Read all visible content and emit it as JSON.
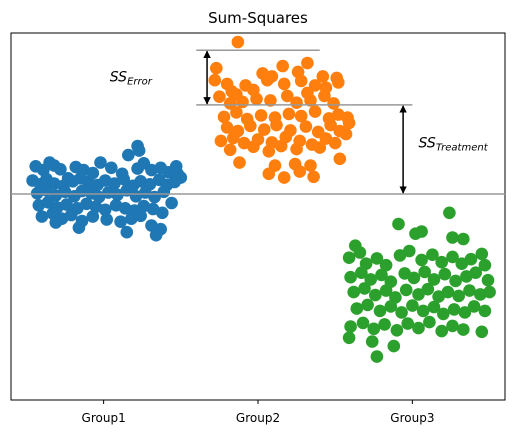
{
  "chart_data": {
    "type": "scatter",
    "title": "Sum-Squares",
    "xlabel": "",
    "ylabel": "",
    "categories": [
      "Group1",
      "Group2",
      "Group3"
    ],
    "xlim": [
      0.4,
      3.6
    ],
    "ylim": [
      -2.75,
      2.15
    ],
    "grid": false,
    "legend": "none",
    "grand_mean": 0,
    "series": [
      {
        "color": "#1f77b4",
        "points": [
          [
            0.56,
            0.37
          ],
          [
            0.61,
            0.32
          ],
          [
            0.65,
            0.42
          ],
          [
            0.68,
            0.38
          ],
          [
            0.72,
            0.33
          ],
          [
            0.77,
            0.21
          ],
          [
            0.82,
            0.36
          ],
          [
            0.87,
            0.32
          ],
          [
            0.93,
            0.28
          ],
          [
            0.98,
            0.42
          ],
          [
            1.05,
            0.35
          ],
          [
            1.12,
            0.27
          ],
          [
            1.16,
            0.52
          ],
          [
            1.22,
            0.34
          ],
          [
            1.26,
            0.41
          ],
          [
            1.31,
            0.32
          ],
          [
            1.37,
            0.35
          ],
          [
            1.42,
            0.29
          ],
          [
            1.47,
            0.37
          ],
          [
            1.5,
            0.22
          ],
          [
            0.54,
            0.18
          ],
          [
            0.59,
            0.13
          ],
          [
            0.63,
            0.2
          ],
          [
            0.68,
            0.14
          ],
          [
            0.74,
            0.11
          ],
          [
            0.8,
            0.17
          ],
          [
            0.85,
            0.21
          ],
          [
            0.9,
            0.16
          ],
          [
            0.96,
            0.12
          ],
          [
            1.01,
            0.18
          ],
          [
            1.07,
            0.14
          ],
          [
            1.13,
            0.2
          ],
          [
            1.19,
            0.11
          ],
          [
            1.24,
            0.17
          ],
          [
            1.3,
            0.13
          ],
          [
            1.36,
            0.19
          ],
          [
            1.41,
            0.12
          ],
          [
            1.46,
            0.16
          ],
          [
            1.48,
            0.27
          ],
          [
            0.57,
            0.01
          ],
          [
            0.63,
            0.05
          ],
          [
            0.69,
            -0.02
          ],
          [
            0.75,
            0.03
          ],
          [
            0.81,
            -0.03
          ],
          [
            0.86,
            0.04
          ],
          [
            0.92,
            0.01
          ],
          [
            0.97,
            -0.04
          ],
          [
            1.03,
            0.02
          ],
          [
            1.09,
            -0.01
          ],
          [
            1.15,
            0.05
          ],
          [
            1.21,
            -0.03
          ],
          [
            1.27,
            0.02
          ],
          [
            1.33,
            -0.04
          ],
          [
            1.39,
            0.03
          ],
          [
            1.44,
            -0.12
          ],
          [
            0.58,
            -0.15
          ],
          [
            0.64,
            -0.11
          ],
          [
            0.7,
            -0.18
          ],
          [
            0.76,
            -0.14
          ],
          [
            0.83,
            -0.19
          ],
          [
            0.89,
            -0.13
          ],
          [
            0.95,
            -0.17
          ],
          [
            1.01,
            -0.21
          ],
          [
            1.08,
            -0.15
          ],
          [
            1.14,
            -0.19
          ],
          [
            1.2,
            -0.22
          ],
          [
            1.26,
            -0.16
          ],
          [
            1.32,
            -0.2
          ],
          [
            1.38,
            -0.25
          ],
          [
            0.6,
            -0.3
          ],
          [
            0.67,
            -0.26
          ],
          [
            0.73,
            -0.33
          ],
          [
            0.79,
            -0.28
          ],
          [
            0.86,
            -0.36
          ],
          [
            0.93,
            -0.3
          ],
          [
            1.02,
            -0.34
          ],
          [
            1.11,
            -0.37
          ],
          [
            1.18,
            -0.33
          ],
          [
            1.24,
            -0.29
          ],
          [
            1.31,
            -0.42
          ],
          [
            1.37,
            -0.47
          ],
          [
            1.34,
            -0.55
          ],
          [
            0.84,
            -0.45
          ],
          [
            0.69,
            -0.38
          ],
          [
            1.15,
            -0.51
          ],
          [
            1.22,
            0.64
          ],
          [
            1.23,
            0.58
          ]
        ]
      },
      {
        "color": "#ff7f0e",
        "points": [
          [
            1.87,
            2.03
          ],
          [
            1.73,
            1.68
          ],
          [
            1.72,
            1.52
          ],
          [
            1.8,
            1.47
          ],
          [
            1.83,
            1.37
          ],
          [
            2.03,
            1.61
          ],
          [
            2.09,
            1.57
          ],
          [
            2.16,
            1.71
          ],
          [
            2.26,
            1.63
          ],
          [
            2.32,
            1.75
          ],
          [
            2.42,
            1.57
          ],
          [
            2.51,
            1.55
          ],
          [
            2.37,
            1.45
          ],
          [
            2.44,
            1.42
          ],
          [
            2.52,
            1.49
          ],
          [
            2.32,
            1.35
          ],
          [
            2.06,
            1.52
          ],
          [
            1.92,
            1.45
          ],
          [
            1.86,
            1.33
          ],
          [
            1.97,
            1.39
          ],
          [
            2.17,
            1.47
          ],
          [
            2.28,
            1.51
          ],
          [
            1.75,
            1.3
          ],
          [
            1.82,
            1.21
          ],
          [
            1.9,
            1.23
          ],
          [
            1.99,
            1.27
          ],
          [
            2.08,
            1.25
          ],
          [
            2.19,
            1.31
          ],
          [
            2.25,
            1.22
          ],
          [
            2.34,
            1.25
          ],
          [
            2.43,
            1.31
          ],
          [
            2.49,
            1.21
          ],
          [
            1.78,
            1.03
          ],
          [
            1.86,
            1.09
          ],
          [
            1.93,
            1.0
          ],
          [
            2.02,
            1.05
          ],
          [
            2.11,
            1.02
          ],
          [
            2.2,
            1.07
          ],
          [
            2.28,
            1.04
          ],
          [
            2.37,
            1.1
          ],
          [
            2.46,
            1.01
          ],
          [
            2.52,
            1.06
          ],
          [
            1.8,
            0.89
          ],
          [
            1.87,
            0.84
          ],
          [
            1.95,
            0.91
          ],
          [
            2.04,
            0.86
          ],
          [
            2.12,
            0.92
          ],
          [
            2.21,
            0.85
          ],
          [
            2.31,
            0.9
          ],
          [
            2.39,
            0.83
          ],
          [
            2.47,
            0.92
          ],
          [
            2.53,
            0.84
          ],
          [
            1.76,
            0.71
          ],
          [
            1.84,
            0.75
          ],
          [
            1.91,
            0.68
          ],
          [
            2.0,
            0.73
          ],
          [
            2.09,
            0.69
          ],
          [
            2.18,
            0.76
          ],
          [
            2.27,
            0.71
          ],
          [
            2.35,
            0.66
          ],
          [
            2.44,
            0.74
          ],
          [
            2.5,
            0.68
          ],
          [
            1.82,
            0.59
          ],
          [
            1.97,
            0.63
          ],
          [
            2.07,
            0.57
          ],
          [
            2.15,
            0.64
          ],
          [
            2.25,
            0.6
          ],
          [
            2.4,
            0.62
          ],
          [
            2.24,
            0.4
          ],
          [
            2.27,
            0.3
          ],
          [
            2.36,
            0.23
          ],
          [
            2.17,
            0.22
          ],
          [
            2.07,
            0.27
          ],
          [
            1.88,
            0.42
          ],
          [
            2.53,
            0.47
          ],
          [
            2.34,
            0.38
          ],
          [
            2.11,
            0.38
          ],
          [
            2.58,
            1.02
          ],
          [
            2.59,
            0.95
          ],
          [
            2.57,
            0.8
          ]
        ]
      },
      {
        "color": "#2ca02c",
        "points": [
          [
            3.24,
            -0.25
          ],
          [
            2.91,
            -0.4
          ],
          [
            3.02,
            -0.53
          ],
          [
            3.06,
            -0.5
          ],
          [
            3.33,
            -0.6
          ],
          [
            3.26,
            -0.58
          ],
          [
            2.63,
            -0.69
          ],
          [
            2.59,
            -0.85
          ],
          [
            2.66,
            -0.78
          ],
          [
            2.7,
            -0.93
          ],
          [
            2.77,
            -0.86
          ],
          [
            2.83,
            -0.95
          ],
          [
            2.92,
            -0.82
          ],
          [
            2.98,
            -0.76
          ],
          [
            3.06,
            -0.88
          ],
          [
            3.13,
            -0.81
          ],
          [
            3.19,
            -0.91
          ],
          [
            3.26,
            -0.84
          ],
          [
            3.32,
            -0.93
          ],
          [
            3.38,
            -0.87
          ],
          [
            3.45,
            -0.8
          ],
          [
            3.47,
            -0.95
          ],
          [
            2.6,
            -1.11
          ],
          [
            2.67,
            -1.05
          ],
          [
            2.73,
            -1.14
          ],
          [
            2.8,
            -1.08
          ],
          [
            2.86,
            -1.17
          ],
          [
            2.95,
            -1.06
          ],
          [
            3.01,
            -1.12
          ],
          [
            3.08,
            -1.04
          ],
          [
            3.14,
            -1.14
          ],
          [
            3.21,
            -1.07
          ],
          [
            3.28,
            -1.16
          ],
          [
            3.35,
            -1.1
          ],
          [
            3.41,
            -1.05
          ],
          [
            3.49,
            -1.15
          ],
          [
            2.62,
            -1.31
          ],
          [
            2.69,
            -1.26
          ],
          [
            2.76,
            -1.35
          ],
          [
            2.83,
            -1.29
          ],
          [
            2.89,
            -1.38
          ],
          [
            2.96,
            -1.28
          ],
          [
            3.04,
            -1.34
          ],
          [
            3.1,
            -1.27
          ],
          [
            3.17,
            -1.37
          ],
          [
            3.23,
            -1.31
          ],
          [
            3.3,
            -1.36
          ],
          [
            3.37,
            -1.29
          ],
          [
            3.44,
            -1.34
          ],
          [
            3.5,
            -1.31
          ],
          [
            2.64,
            -1.53
          ],
          [
            2.71,
            -1.48
          ],
          [
            2.79,
            -1.56
          ],
          [
            2.86,
            -1.5
          ],
          [
            2.93,
            -1.58
          ],
          [
            3.0,
            -1.49
          ],
          [
            3.07,
            -1.56
          ],
          [
            3.14,
            -1.51
          ],
          [
            3.2,
            -1.6
          ],
          [
            3.27,
            -1.54
          ],
          [
            3.34,
            -1.58
          ],
          [
            3.4,
            -1.5
          ],
          [
            3.47,
            -1.56
          ],
          [
            2.6,
            -1.77
          ],
          [
            2.68,
            -1.72
          ],
          [
            2.75,
            -1.8
          ],
          [
            2.82,
            -1.74
          ],
          [
            2.9,
            -1.82
          ],
          [
            2.97,
            -1.73
          ],
          [
            3.04,
            -1.79
          ],
          [
            3.11,
            -1.71
          ],
          [
            3.19,
            -1.83
          ],
          [
            3.26,
            -1.76
          ],
          [
            3.33,
            -1.81
          ],
          [
            3.45,
            -1.84
          ],
          [
            2.59,
            -1.92
          ],
          [
            2.74,
            -1.97
          ],
          [
            2.88,
            -2.03
          ],
          [
            2.77,
            -2.17
          ]
        ]
      }
    ],
    "annotations": [
      {
        "base": "SS",
        "sub": "Error",
        "bracket_top": 1.92,
        "bracket_bottom": 1.19
      },
      {
        "base": "SS",
        "sub": "Treatment",
        "bracket_top": 1.19,
        "bracket_bottom": 0
      }
    ]
  }
}
